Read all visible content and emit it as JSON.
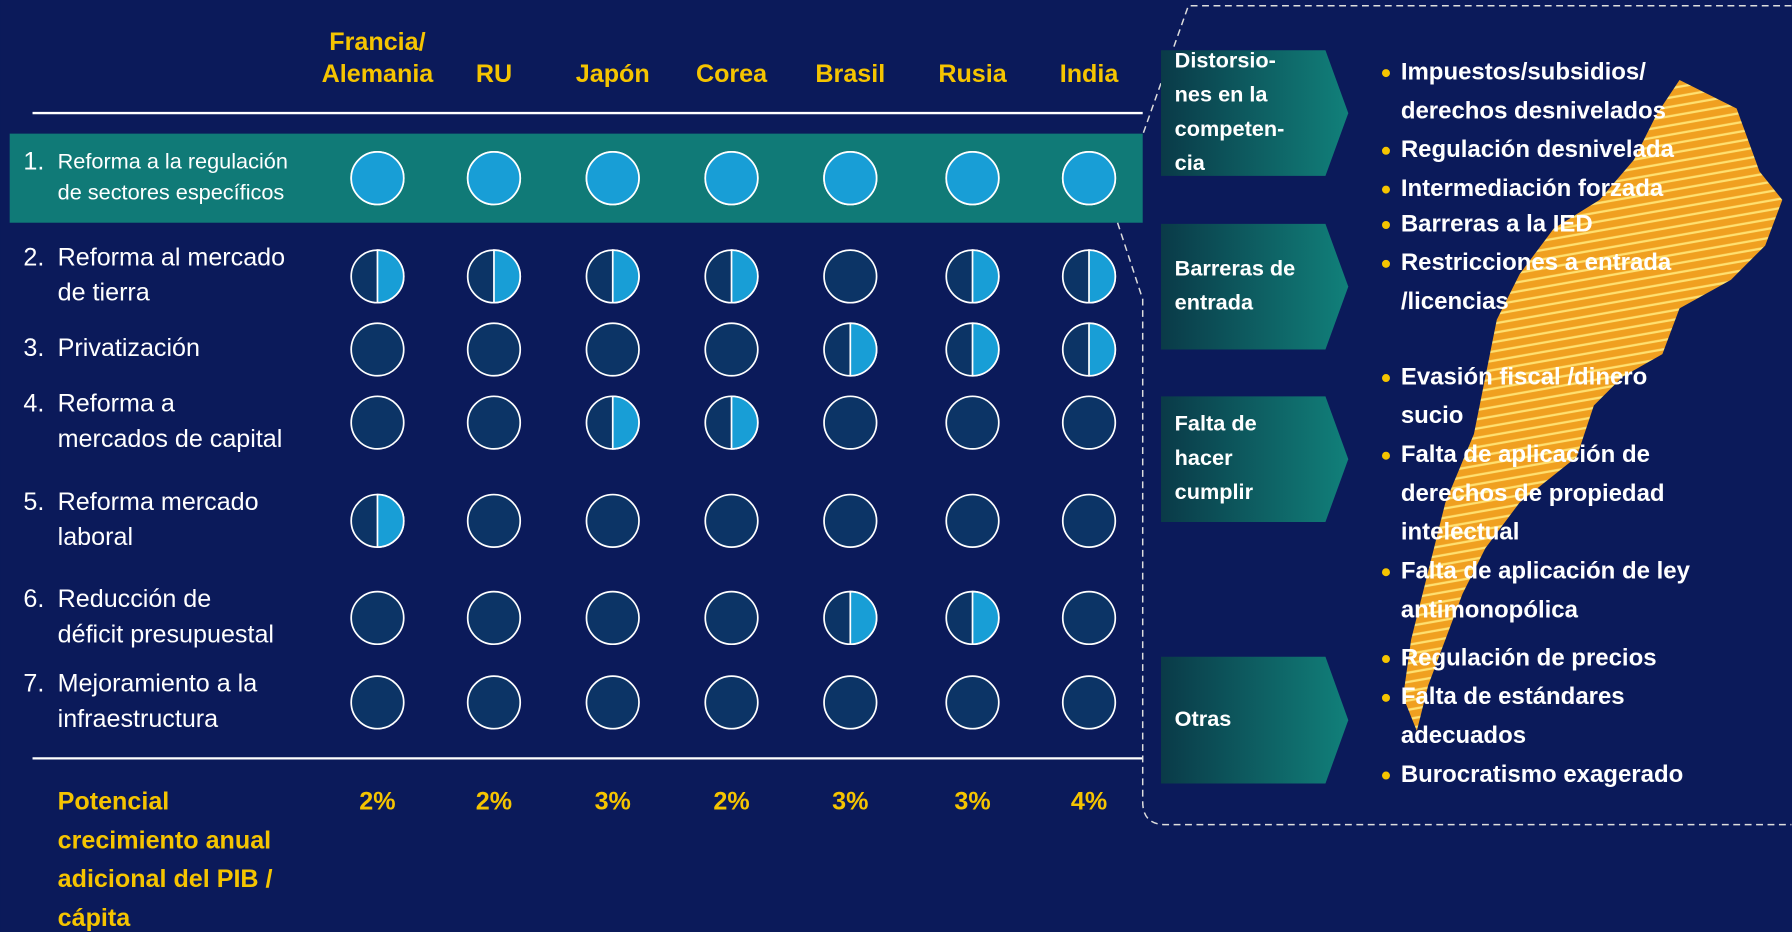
{
  "columns": [
    [
      "Francia/",
      "Alemania"
    ],
    [
      "RU"
    ],
    [
      "Japón"
    ],
    [
      "Corea"
    ],
    [
      "Brasil"
    ],
    [
      "Rusia"
    ],
    [
      "India"
    ]
  ],
  "rows": [
    {
      "number": "1.",
      "label": [
        "Reforma a la regulación",
        "de sectores específicos"
      ],
      "levels": [
        1,
        1,
        1,
        1,
        1,
        1,
        1
      ]
    },
    {
      "number": "2.",
      "label": [
        "Reforma al mercado",
        "de tierra"
      ],
      "levels": [
        0.5,
        0.5,
        0.5,
        0.5,
        0,
        0.5,
        0.5
      ]
    },
    {
      "number": "3.",
      "label": [
        "Privatización"
      ],
      "levels": [
        0,
        0,
        0,
        0,
        0.5,
        0.5,
        0.5
      ]
    },
    {
      "number": "4.",
      "label": [
        "Reforma a",
        "mercados de capital"
      ],
      "levels": [
        0,
        0,
        0.5,
        0.5,
        0,
        0,
        0
      ]
    },
    {
      "number": "5.",
      "label": [
        "Reforma mercado",
        "laboral"
      ],
      "levels": [
        0.5,
        0,
        0,
        0,
        0,
        0,
        0
      ]
    },
    {
      "number": "6.",
      "label": [
        "Reducción de",
        "déficit presupuestal"
      ],
      "levels": [
        0,
        0,
        0,
        0,
        0.5,
        0.5,
        0
      ]
    },
    {
      "number": "7.",
      "label": [
        "Mejoramiento a la",
        "infraestructura"
      ],
      "levels": [
        0,
        0,
        0,
        0,
        0,
        0,
        0
      ]
    }
  ],
  "footer": {
    "label": [
      "Potencial",
      "crecimiento anual",
      "adicional del PIB /",
      "cápita"
    ],
    "values": [
      "2%",
      "2%",
      "3%",
      "2%",
      "3%",
      "3%",
      "4%"
    ]
  },
  "groups": [
    {
      "label": [
        "Distorsio-",
        "nes en la",
        "competen-",
        "cia"
      ],
      "bullets": [
        [
          "Impuestos/subsidios/",
          "derechos desnivelados"
        ],
        [
          "Regulación desnivelada"
        ],
        [
          "Intermediación forzada"
        ]
      ]
    },
    {
      "label": [
        "Barreras de",
        "entrada"
      ],
      "bullets": [
        [
          "Barreras a la IED"
        ],
        [
          "Restricciones a entrada",
          "/licencias"
        ]
      ]
    },
    {
      "label": [
        "Falta de",
        "hacer",
        "cumplir"
      ],
      "bullets": [
        [
          "Evasión fiscal /dinero",
          "sucio"
        ],
        [
          "Falta de aplicación de",
          "derechos de propiedad",
          "intelectual"
        ],
        [
          "Falta de aplicación de ley",
          "antimonopólica"
        ]
      ]
    },
    {
      "label": [
        "Otras"
      ],
      "bullets": [
        [
          "Regulación de precios"
        ],
        [
          "Falta de estándares",
          "adecuados"
        ],
        [
          "Burocratismo exagerado"
        ]
      ]
    }
  ]
}
